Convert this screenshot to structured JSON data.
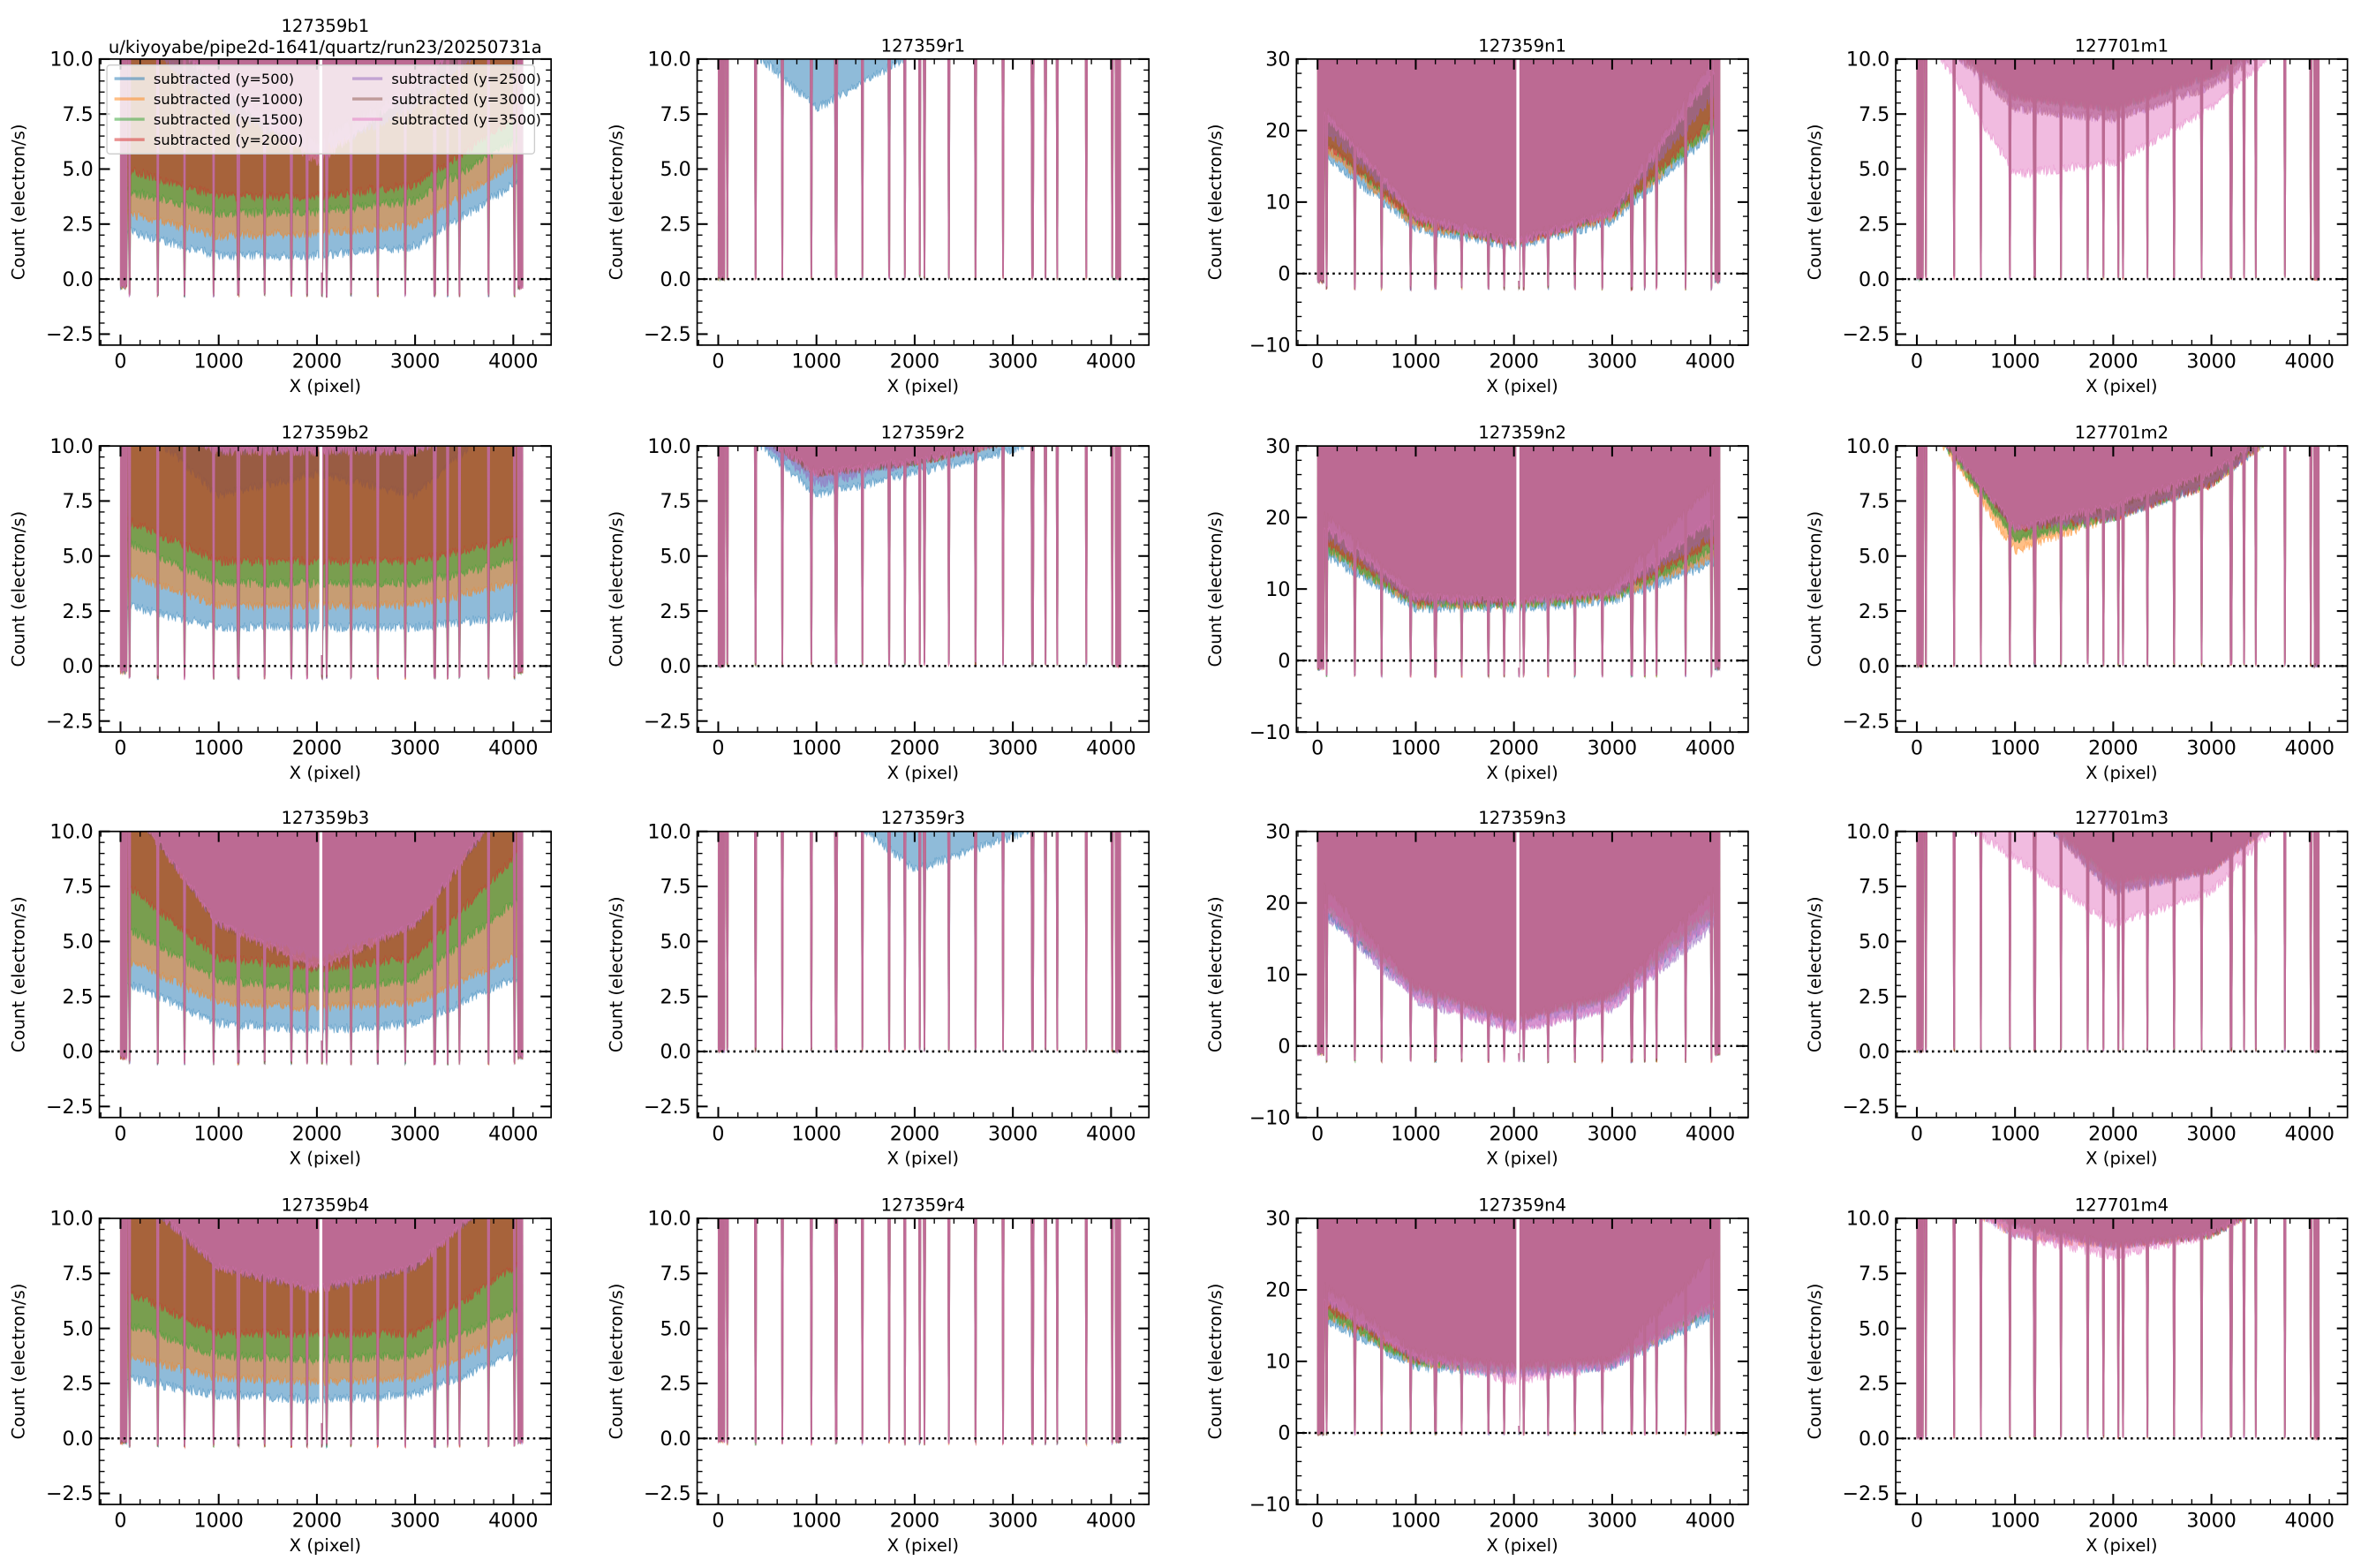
{
  "figure": {
    "suptitle_path": "u/kiyoyabe/pipe2d-1641/quartz/run23/20250731a"
  },
  "legend": {
    "entries": [
      "subtracted (y=500)",
      "subtracted (y=1000)",
      "subtracted (y=1500)",
      "subtracted (y=2000)",
      "subtracted (y=2500)",
      "subtracted (y=3000)",
      "subtracted (y=3500)"
    ],
    "colors": [
      "#1f77b4",
      "#ff7f0e",
      "#2ca02c",
      "#d62728",
      "#9467bd",
      "#8c564b",
      "#e377c2"
    ],
    "placement": "top (inside first panel)"
  },
  "chart_data": {
    "type": "line",
    "grid": "4x4 subplots",
    "xlabel": "X (pixel)",
    "ylabel": "Count (electron/s)",
    "xlim": [
      -215,
      4385
    ],
    "xticks": [
      0,
      1000,
      2000,
      3000,
      4000
    ],
    "level_sample_x": [
      0,
      1000,
      2000,
      3000,
      4000
    ],
    "fiber_dip_x": [
      90,
      380,
      650,
      950,
      1200,
      1470,
      1740,
      1900,
      2050,
      2100,
      2350,
      2620,
      2900,
      3200,
      3330,
      3450,
      3750,
      4010
    ],
    "reference_line_y": 0,
    "panels": [
      {
        "title": "127359b1",
        "ylim": [
          -3,
          10
        ],
        "yticks": [
          "−2.5",
          "0.0",
          "2.5",
          "5.0",
          "7.5",
          "10.0"
        ],
        "ytick_values": [
          -2.5,
          0,
          2.5,
          5,
          7.5,
          10
        ],
        "dip": -0.7,
        "gap": true,
        "levels": [
          [
            2.5,
            1.3,
            1.3,
            1.7,
            4.5
          ],
          [
            3.3,
            2.2,
            2.3,
            2.7,
            5.5
          ],
          [
            4.3,
            3.2,
            3.3,
            3.8,
            6.5
          ],
          [
            5.3,
            4,
            4,
            4.5,
            7.5
          ],
          [
            12,
            8,
            6,
            8,
            12
          ],
          [
            14,
            9,
            6.5,
            9,
            14
          ],
          [
            13,
            9,
            5.5,
            9,
            13
          ]
        ]
      },
      {
        "title": "127359r1",
        "ylim": [
          -3,
          10
        ],
        "yticks": [
          "−2.5",
          "0.0",
          "2.5",
          "5.0",
          "7.5",
          "10.0"
        ],
        "ytick_values": [
          -2.5,
          0,
          2.5,
          5,
          7.5,
          10
        ],
        "dip": 0.1,
        "gap": false,
        "levels": [
          [
            12,
            8,
            10.5,
            12,
            12
          ],
          [
            12,
            10.5,
            12,
            12,
            12
          ],
          [
            12,
            11,
            12,
            12,
            12
          ],
          [
            12,
            11,
            12,
            12,
            12
          ],
          [
            12,
            11,
            12,
            12,
            12
          ],
          [
            12,
            11,
            12,
            12,
            12
          ],
          [
            12,
            11,
            12,
            12,
            12
          ]
        ]
      },
      {
        "title": "127359n1",
        "ylim": [
          -10,
          30
        ],
        "yticks": [
          "−10",
          "0",
          "10",
          "20",
          "30"
        ],
        "ytick_values": [
          -10,
          0,
          10,
          20,
          30
        ],
        "dip": -2,
        "gap": true,
        "levels": [
          [
            18,
            7,
            4.5,
            8,
            20
          ],
          [
            19,
            7.5,
            5,
            8.5,
            21
          ],
          [
            20,
            8,
            5,
            9,
            21
          ],
          [
            20,
            8,
            5,
            9,
            22
          ],
          [
            22,
            8.5,
            5,
            9,
            25
          ],
          [
            25,
            9,
            5.5,
            9.5,
            30
          ],
          [
            24,
            8.5,
            5,
            9,
            28
          ]
        ]
      },
      {
        "title": "127701m1",
        "ylim": [
          -3,
          10
        ],
        "yticks": [
          "−2.5",
          "0.0",
          "2.5",
          "5.0",
          "7.5",
          "10.0"
        ],
        "ytick_values": [
          -2.5,
          0,
          2.5,
          5,
          7.5,
          10
        ],
        "dip": 0.1,
        "gap": false,
        "levels": [
          [
            12,
            8.5,
            8,
            9.5,
            12
          ],
          [
            12,
            8.5,
            8,
            9.5,
            12
          ],
          [
            12,
            8.5,
            8,
            9.5,
            12
          ],
          [
            12,
            8.5,
            8,
            9.5,
            12
          ],
          [
            12,
            8,
            7.5,
            9,
            12
          ],
          [
            12,
            8,
            7.5,
            9,
            12
          ],
          [
            12,
            5,
            5.5,
            8,
            12
          ]
        ]
      },
      {
        "title": "127359b2",
        "ylim": [
          -3,
          10
        ],
        "yticks": [
          "−2.5",
          "0.0",
          "2.5",
          "5.0",
          "7.5",
          "10.0"
        ],
        "ytick_values": [
          -2.5,
          0,
          2.5,
          5,
          7.5,
          10
        ],
        "dip": -0.5,
        "gap": true,
        "levels": [
          [
            3,
            2,
            2,
            2,
            2.5
          ],
          [
            4.5,
            3,
            3,
            3,
            4
          ],
          [
            6,
            4,
            4,
            4,
            5
          ],
          [
            7,
            5,
            5,
            5,
            6
          ],
          [
            12,
            10,
            10,
            10,
            12
          ],
          [
            12,
            8,
            9,
            8,
            12
          ],
          [
            12,
            10,
            10,
            10,
            12
          ]
        ]
      },
      {
        "title": "127359r2",
        "ylim": [
          -3,
          10
        ],
        "yticks": [
          "−2.5",
          "0.0",
          "2.5",
          "5.0",
          "7.5",
          "10.0"
        ],
        "ytick_values": [
          -2.5,
          0,
          2.5,
          5,
          7.5,
          10
        ],
        "dip": 0.1,
        "gap": false,
        "levels": [
          [
            12,
            8,
            9,
            10,
            12
          ],
          [
            12,
            9,
            9.5,
            10.5,
            12
          ],
          [
            12,
            9,
            9.5,
            10.5,
            12
          ],
          [
            12,
            9,
            9.5,
            10.5,
            12
          ],
          [
            12,
            8.5,
            9.5,
            10.5,
            12
          ],
          [
            12,
            9,
            9.5,
            10.5,
            12
          ],
          [
            12,
            9,
            9.5,
            10.5,
            12
          ]
        ]
      },
      {
        "title": "127359n2",
        "ylim": [
          -10,
          30
        ],
        "yticks": [
          "−10",
          "0",
          "10",
          "20",
          "30"
        ],
        "ytick_values": [
          -10,
          0,
          10,
          20,
          30
        ],
        "dip": -2,
        "gap": true,
        "levels": [
          [
            16,
            8,
            8,
            9,
            14
          ],
          [
            17,
            8.5,
            8.5,
            9.5,
            15
          ],
          [
            17,
            8.5,
            8.5,
            9.5,
            16
          ],
          [
            18,
            9,
            9,
            10,
            17
          ],
          [
            19,
            9,
            9,
            10,
            18
          ],
          [
            22,
            10,
            9,
            11,
            25
          ],
          [
            20,
            9.5,
            9,
            10,
            20
          ]
        ]
      },
      {
        "title": "127701m2",
        "ylim": [
          -3,
          10
        ],
        "yticks": [
          "−2.5",
          "0.0",
          "2.5",
          "5.0",
          "7.5",
          "10.0"
        ],
        "ytick_values": [
          -2.5,
          0,
          2.5,
          5,
          7.5,
          10
        ],
        "dip": 0.1,
        "gap": false,
        "levels": [
          [
            12,
            6,
            7,
            8.5,
            12
          ],
          [
            12,
            5.5,
            7,
            8.5,
            12
          ],
          [
            12,
            6,
            7,
            8.5,
            12
          ],
          [
            12,
            6.5,
            7,
            8.5,
            12
          ],
          [
            12,
            6.5,
            7,
            8.5,
            12
          ],
          [
            12,
            6.5,
            7.5,
            9,
            12
          ],
          [
            12,
            6.5,
            7.5,
            9,
            12
          ]
        ]
      },
      {
        "title": "127359b3",
        "ylim": [
          -3,
          10
        ],
        "yticks": [
          "−2.5",
          "0.0",
          "2.5",
          "5.0",
          "7.5",
          "10.0"
        ],
        "ytick_values": [
          -2.5,
          0,
          2.5,
          5,
          7.5,
          10
        ],
        "dip": -0.5,
        "gap": true,
        "levels": [
          [
            3.5,
            1.5,
            1.2,
            1.5,
            3.5
          ],
          [
            4.5,
            2.5,
            2.2,
            2.5,
            4.5
          ],
          [
            6,
            3.5,
            3,
            3.5,
            7
          ],
          [
            8,
            4.5,
            4,
            4.5,
            9
          ],
          [
            12,
            6,
            4.5,
            6,
            12
          ],
          [
            12,
            6,
            4,
            6,
            12
          ],
          [
            12,
            6,
            4,
            6,
            12
          ]
        ]
      },
      {
        "title": "127359r3",
        "ylim": [
          -3,
          10
        ],
        "yticks": [
          "−2.5",
          "0.0",
          "2.5",
          "5.0",
          "7.5",
          "10.0"
        ],
        "ytick_values": [
          -2.5,
          0,
          2.5,
          5,
          7.5,
          10
        ],
        "dip": 0.1,
        "gap": false,
        "levels": [
          [
            12,
            12,
            8.5,
            10,
            12
          ],
          [
            12,
            12,
            11,
            12,
            12
          ],
          [
            12,
            12,
            11,
            12,
            12
          ],
          [
            12,
            12,
            11,
            12,
            12
          ],
          [
            12,
            12,
            11,
            12,
            12
          ],
          [
            12,
            12,
            11,
            12,
            12
          ],
          [
            12,
            12,
            11,
            12,
            12
          ]
        ]
      },
      {
        "title": "127359n3",
        "ylim": [
          -10,
          30
        ],
        "yticks": [
          "−10",
          "0",
          "10",
          "20",
          "30"
        ],
        "ytick_values": [
          -10,
          0,
          10,
          20,
          30
        ],
        "dip": -2,
        "gap": true,
        "levels": [
          [
            20,
            8,
            4,
            7,
            18
          ],
          [
            21,
            8.5,
            4.5,
            7.5,
            19
          ],
          [
            21,
            8.5,
            4.5,
            7.5,
            19
          ],
          [
            22,
            9,
            4.5,
            8,
            20
          ],
          [
            20,
            7,
            3,
            6,
            17
          ],
          [
            24,
            9,
            4.5,
            8,
            22
          ],
          [
            21,
            7.5,
            3,
            6,
            18
          ]
        ]
      },
      {
        "title": "127701m3",
        "ylim": [
          -3,
          10
        ],
        "yticks": [
          "−2.5",
          "0.0",
          "2.5",
          "5.0",
          "7.5",
          "10.0"
        ],
        "ytick_values": [
          -2.5,
          0,
          2.5,
          5,
          7.5,
          10
        ],
        "dip": 0.1,
        "gap": false,
        "levels": [
          [
            12,
            12,
            7.5,
            8.5,
            12
          ],
          [
            12,
            12,
            8,
            8.5,
            12
          ],
          [
            12,
            12,
            8,
            8.5,
            12
          ],
          [
            12,
            12,
            8,
            8.5,
            12
          ],
          [
            12,
            12,
            7.5,
            8.5,
            12
          ],
          [
            12,
            12,
            7.5,
            8.5,
            12
          ],
          [
            12,
            9,
            6,
            7.5,
            12
          ]
        ]
      },
      {
        "title": "127359b4",
        "ylim": [
          -3,
          10
        ],
        "yticks": [
          "−2.5",
          "0.0",
          "2.5",
          "5.0",
          "7.5",
          "10.0"
        ],
        "ytick_values": [
          -2.5,
          0,
          2.5,
          5,
          7.5,
          10
        ],
        "dip": -0.3,
        "gap": true,
        "levels": [
          [
            3,
            2.2,
            2,
            2.2,
            4
          ],
          [
            4,
            3,
            2.8,
            3,
            5
          ],
          [
            5.5,
            4,
            3.8,
            4,
            6
          ],
          [
            7,
            5,
            5,
            5,
            8
          ],
          [
            12,
            8,
            7,
            8,
            12
          ],
          [
            12,
            8,
            7,
            8,
            12
          ],
          [
            12,
            8,
            7,
            8,
            12
          ]
        ]
      },
      {
        "title": "127359r4",
        "ylim": [
          -3,
          10
        ],
        "yticks": [
          "−2.5",
          "0.0",
          "2.5",
          "5.0",
          "7.5",
          "10.0"
        ],
        "ytick_values": [
          -2.5,
          0,
          2.5,
          5,
          7.5,
          10
        ],
        "dip": -0.2,
        "gap": false,
        "levels": [
          [
            12,
            12,
            12,
            12,
            12
          ],
          [
            12,
            12,
            12,
            12,
            12
          ],
          [
            12,
            12,
            12,
            12,
            12
          ],
          [
            12,
            12,
            12,
            12,
            12
          ],
          [
            12,
            12,
            12,
            12,
            12
          ],
          [
            12,
            12,
            12,
            12,
            12
          ],
          [
            12,
            12,
            12,
            12,
            12
          ]
        ]
      },
      {
        "title": "127359n4",
        "ylim": [
          -10,
          30
        ],
        "yticks": [
          "−10",
          "0",
          "10",
          "20",
          "30"
        ],
        "ytick_values": [
          -10,
          0,
          10,
          20,
          30
        ],
        "dip": 0,
        "gap": true,
        "levels": [
          [
            17,
            10,
            9,
            10,
            17
          ],
          [
            18,
            10.5,
            9.5,
            10.5,
            18
          ],
          [
            18,
            10.5,
            9.5,
            10.5,
            18
          ],
          [
            19,
            11,
            10,
            11,
            19
          ],
          [
            20,
            11,
            9,
            10,
            18
          ],
          [
            22,
            12,
            10,
            11,
            25
          ],
          [
            20,
            11,
            8,
            10,
            18
          ]
        ]
      },
      {
        "title": "127701m4",
        "ylim": [
          -3,
          10
        ],
        "yticks": [
          "−2.5",
          "0.0",
          "2.5",
          "5.0",
          "7.5",
          "10.0"
        ],
        "ytick_values": [
          -2.5,
          0,
          2.5,
          5,
          7.5,
          10
        ],
        "dip": 0.1,
        "gap": false,
        "levels": [
          [
            12,
            10,
            9,
            9.5,
            12
          ],
          [
            12,
            9.5,
            9,
            9.5,
            12
          ],
          [
            12,
            10,
            9,
            9.5,
            12
          ],
          [
            12,
            10,
            9,
            9.5,
            12
          ],
          [
            12,
            9.5,
            9,
            9.5,
            12
          ],
          [
            12,
            10,
            9,
            9.5,
            12
          ],
          [
            12,
            9.5,
            8.5,
            9.5,
            12
          ]
        ]
      }
    ]
  }
}
